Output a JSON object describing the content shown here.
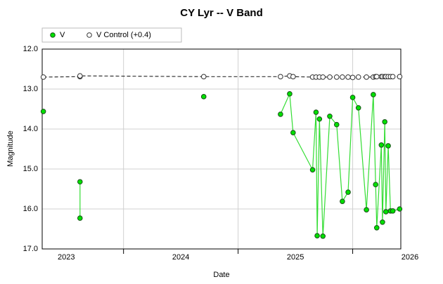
{
  "chart_data": {
    "type": "scatter",
    "title": "CY Lyr -- V Band",
    "xlabel": "Date",
    "ylabel": "Magnitude",
    "xlim": [
      2023.29,
      2026.42
    ],
    "xticks": [
      {
        "value": 2024,
        "label": ""
      },
      {
        "value": 2025,
        "label": ""
      },
      {
        "value": 2026,
        "label": ""
      }
    ],
    "xtick_labels": [
      {
        "value": 2023.5,
        "label": "2023"
      },
      {
        "value": 2024.5,
        "label": "2024"
      },
      {
        "value": 2025.5,
        "label": "2025"
      },
      {
        "value": 2026.5,
        "label": "2026"
      }
    ],
    "ylim": [
      12,
      17
    ],
    "y_inverted": true,
    "yticks": [
      {
        "value": 12,
        "label": "12.0"
      },
      {
        "value": 13,
        "label": "13.0"
      },
      {
        "value": 14,
        "label": "14.0"
      },
      {
        "value": 15,
        "label": "15.0"
      },
      {
        "value": 16,
        "label": "16.0"
      },
      {
        "value": 17,
        "label": "17.0"
      }
    ],
    "grid": true,
    "legend": "top-left",
    "series": [
      {
        "name": "V",
        "color": "#00e000",
        "line_color": "#33dd33",
        "marker_stroke": "#1a4d1a",
        "x": [
          2023.3,
          null,
          2023.62,
          2023.62,
          null,
          2024.7,
          null,
          2025.37,
          2025.45,
          2025.48,
          2025.65,
          2025.68,
          2025.69,
          2025.71,
          2025.74,
          2025.8,
          2025.86,
          2025.91,
          2025.96,
          2026.0,
          2026.05,
          2026.12,
          2026.18,
          2026.2,
          2026.21,
          2026.25,
          2026.26,
          2026.28,
          2026.29,
          2026.31,
          2026.33,
          2026.35,
          2026.41
        ],
        "values": [
          13.56,
          null,
          15.32,
          16.23,
          null,
          13.19,
          null,
          13.63,
          13.12,
          14.09,
          15.02,
          13.58,
          16.67,
          13.75,
          16.68,
          13.68,
          13.89,
          15.81,
          15.58,
          13.21,
          13.47,
          16.02,
          13.14,
          15.39,
          16.47,
          14.4,
          16.33,
          13.82,
          16.07,
          14.42,
          16.05,
          16.05,
          16.0
        ]
      },
      {
        "name": "V Control (+0.4)",
        "color": "#ffffff",
        "line_color": "#333333",
        "marker_stroke": "#333333",
        "dashed": true,
        "x": [
          2023.3,
          2023.62,
          2023.62,
          2024.7,
          2025.37,
          2025.45,
          2025.48,
          2025.65,
          2025.68,
          2025.71,
          2025.74,
          2025.8,
          2025.86,
          2025.91,
          2025.96,
          2026.0,
          2026.05,
          2026.12,
          2026.18,
          2026.2,
          2026.21,
          2026.25,
          2026.26,
          2026.28,
          2026.29,
          2026.31,
          2026.33,
          2026.35,
          2026.41
        ],
        "values": [
          12.7,
          12.69,
          12.67,
          12.69,
          12.69,
          12.67,
          12.69,
          12.7,
          12.7,
          12.7,
          12.7,
          12.7,
          12.7,
          12.7,
          12.7,
          12.71,
          12.7,
          12.7,
          12.7,
          12.69,
          12.69,
          12.69,
          12.69,
          12.69,
          12.69,
          12.69,
          12.69,
          12.69,
          12.69
        ]
      }
    ]
  }
}
